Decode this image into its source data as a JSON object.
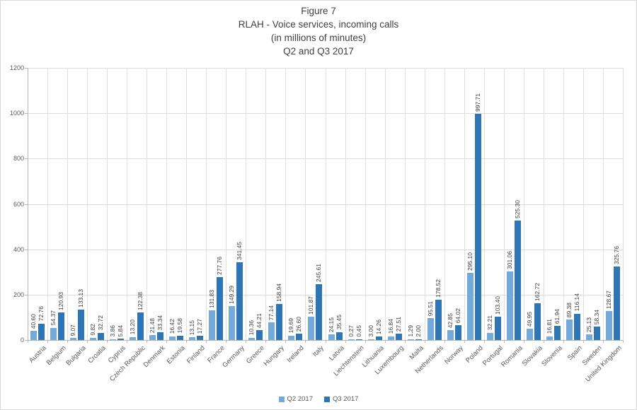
{
  "title": {
    "line1": "Figure 7",
    "line2": "RLAH - Voice services, incoming calls",
    "line3": "(in millions of minutes)",
    "line4": "Q2 and Q3 2017"
  },
  "chart_data": {
    "type": "bar",
    "title": "Figure 7 — RLAH - Voice services, incoming calls (in millions of minutes) Q2 and Q3 2017",
    "categories": [
      "Austria",
      "Belgium",
      "Bulgaria",
      "Croatia",
      "Cyprus",
      "Czech Republic",
      "Denmark",
      "Estonia",
      "Finland",
      "France",
      "Germany",
      "Greece",
      "Hungary",
      "Ireland",
      "Italy",
      "Latvia",
      "Liechtenstein",
      "Lithuania",
      "Luxembourg",
      "Malta",
      "Netherlands",
      "Norway",
      "Poland",
      "Portugal",
      "Romania",
      "Slovakia",
      "Slovenia",
      "Spain",
      "Sweden",
      "United Kingdom"
    ],
    "series": [
      {
        "name": "Q2 2017",
        "color": "#74a9dc",
        "values": [
          40.6,
          54.37,
          9.07,
          9.82,
          3.86,
          13.2,
          21.48,
          16.42,
          13.15,
          131.83,
          149.29,
          10.36,
          77.14,
          19.69,
          101.87,
          24.15,
          0.27,
          3.0,
          16.84,
          1.29,
          95.51,
          42.85,
          295.1,
          32.21,
          301.06,
          49.95,
          16.81,
          89.38,
          25.13,
          128.67
        ]
      },
      {
        "name": "Q3 2017",
        "color": "#2e75b6",
        "values": [
          72.76,
          120.93,
          133.13,
          32.72,
          5.84,
          122.38,
          33.34,
          19.58,
          17.27,
          277.76,
          341.45,
          44.21,
          158.94,
          26.6,
          245.61,
          35.45,
          0.45,
          14.26,
          27.51,
          2.0,
          178.52,
          64.02,
          997.71,
          103.4,
          525.3,
          162.72,
          61.94,
          116.14,
          58.34,
          325.76
        ]
      }
    ],
    "ylim": [
      0,
      1200
    ],
    "yticks": [
      0,
      200,
      400,
      600,
      800,
      1000,
      1200
    ],
    "grid": "horizontal and vertical gridlines on",
    "legend_position": "bottom",
    "value_labels": "above each bar, rotated 90 degrees, two decimals",
    "x_tick_label_rotation": 45
  }
}
